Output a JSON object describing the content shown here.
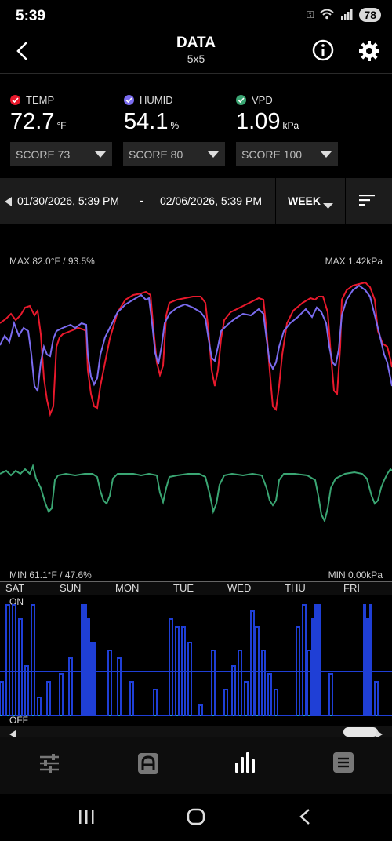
{
  "status": {
    "time": "5:39",
    "battery": "78"
  },
  "header": {
    "title": "DATA",
    "subtitle": "5x5"
  },
  "metrics": [
    {
      "label": "TEMP",
      "value": "72.7",
      "unit": "°F",
      "score": "SCORE 73",
      "color": "#e8192c"
    },
    {
      "label": "HUMID",
      "value": "54.1",
      "unit": "%",
      "score": "SCORE 80",
      "color": "#7b6cf0"
    },
    {
      "label": "VPD",
      "value": "1.09",
      "unit": "kPa",
      "score": "SCORE 100",
      "color": "#3aa673"
    }
  ],
  "date_range": {
    "from": "01/30/2026, 5:39 PM",
    "separator": "-",
    "to": "02/06/2026, 5:39 PM",
    "period": "WEEK"
  },
  "chart_data": {
    "type": "line",
    "labels": {
      "max_left": "MAX 82.0°F / 93.5%",
      "max_right": "MAX 1.42kPa",
      "min_left": "MIN 61.1°F / 47.6%",
      "min_right": "MIN 0.00kPa"
    },
    "days": [
      "SAT",
      "SUN",
      "MON",
      "TUE",
      "WED",
      "THU",
      "FRI"
    ],
    "series": [
      {
        "name": "TEMP",
        "color": "#e8192c"
      },
      {
        "name": "HUMID",
        "color": "#7b6cf0"
      },
      {
        "name": "VPD",
        "color": "#3aa673"
      }
    ],
    "device_states": {
      "on_label": "ON",
      "off_label": "OFF",
      "color": "#1f3fd6"
    }
  },
  "nav": {
    "items": [
      "controls-icon",
      "automation-icon",
      "data-icon",
      "log-icon"
    ]
  }
}
